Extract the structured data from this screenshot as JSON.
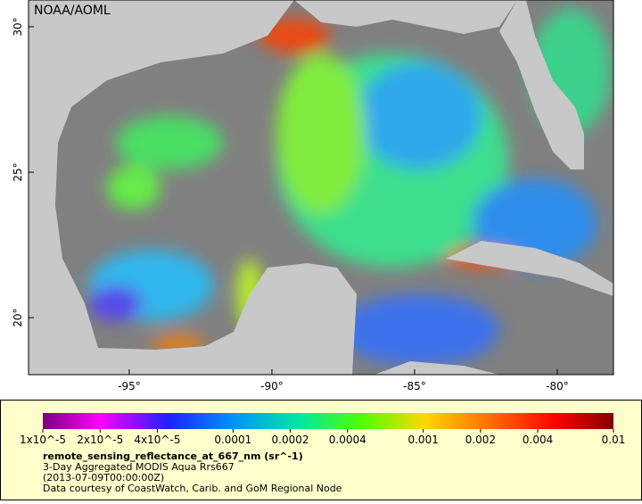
{
  "map": {
    "credit": "NOAA/AOML",
    "xlim": [
      -98.53,
      -78.03
    ],
    "ylim": [
      18.04,
      30.92
    ],
    "lon_ticks": [
      {
        "value": -95,
        "label": "-95°"
      },
      {
        "value": -90,
        "label": "-90°"
      },
      {
        "value": -85,
        "label": "-85°"
      },
      {
        "value": -80,
        "label": "-80°"
      }
    ],
    "lat_ticks": [
      {
        "value": 20,
        "label": "20°"
      },
      {
        "value": 25,
        "label": "25°"
      },
      {
        "value": 30,
        "label": "30°"
      }
    ]
  },
  "colorbar": {
    "scale": "log",
    "lim": [
      1e-05,
      0.01
    ],
    "ticks": [
      {
        "value": 1e-05,
        "label": "1x10^-5"
      },
      {
        "value": 2e-05,
        "label": "2x10^-5"
      },
      {
        "value": 4e-05,
        "label": "4x10^-5"
      },
      0.0001,
      0.0002,
      0.0004,
      0.001,
      0.002,
      0.004,
      0.01
    ]
  },
  "legend": {
    "variable": "remote_sensing_reflectance_at_667_nm (sr^-1)",
    "lines": [
      "3-Day Aggregated MODIS Aqua Rrs667",
      "(2013-07-09T00:00:00Z)",
      "Data courtesy of CoastWatch, Carib. and GoM Regional Node"
    ]
  }
}
